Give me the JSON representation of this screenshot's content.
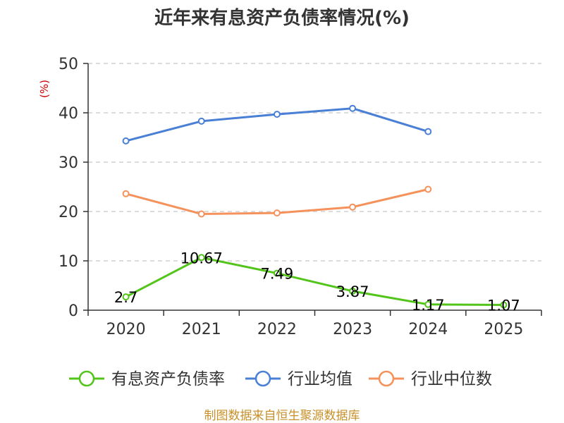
{
  "chart_data": {
    "type": "line",
    "title": "近年来有息资产负债率情况(%)",
    "ylabel": "(%)",
    "categories": [
      "2020",
      "2021",
      "2022",
      "2023",
      "2024",
      "2025"
    ],
    "yticks": [
      "0",
      "10",
      "20",
      "30",
      "40",
      "50"
    ],
    "ylim": [
      0,
      50
    ],
    "grid": true,
    "legend_position": "bottom",
    "series": [
      {
        "name": "有息资产负债率",
        "color": "#52c41a",
        "values": [
          2.7,
          10.67,
          7.49,
          3.87,
          1.17,
          1.07
        ],
        "labels": [
          "2.7",
          "10.67",
          "7.49",
          "3.87",
          "1.17",
          "1.07"
        ]
      },
      {
        "name": "行业均值",
        "color": "#4a7fd6",
        "values": [
          34.3,
          38.3,
          39.7,
          40.9,
          36.2,
          null
        ]
      },
      {
        "name": "行业中位数",
        "color": "#f5915a",
        "values": [
          23.6,
          19.5,
          19.7,
          20.9,
          24.5,
          null
        ]
      }
    ]
  },
  "source_text": "制图数据来自恒生聚源数据库"
}
